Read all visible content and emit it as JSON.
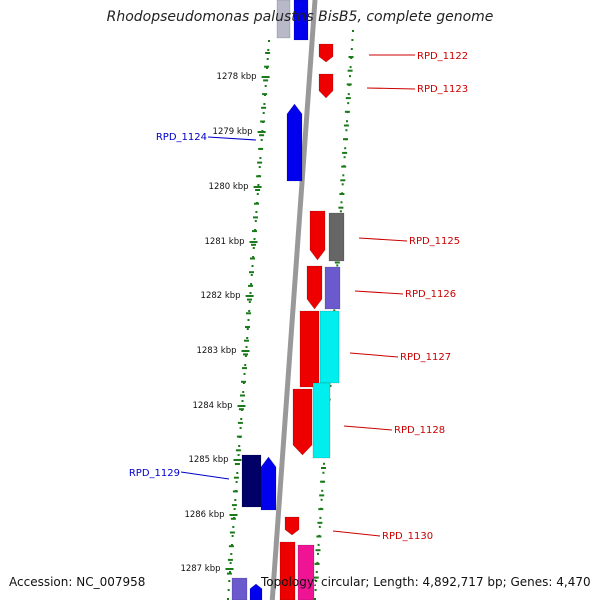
{
  "title": "Rhodopseudomonas palustris BisB5, complete genome",
  "footer": {
    "accession": "Accession: NC_007958",
    "summary": "Topology: circular; Length: 4,892,717 bp; Genes: 4,470"
  },
  "colors": {
    "forward_strand": "#ee0000",
    "reverse_strand": "#0000ee",
    "dark_blue": "#000066",
    "grey_gene": "#666666",
    "slate_gene": "#6a5acd",
    "cyan_gene": "#00eeee",
    "magenta_gene": "#ee1493",
    "tick": "#1a7a1a"
  },
  "kbp_labels": [
    "1278 kbp",
    "1279 kbp",
    "1280 kbp",
    "1281 kbp",
    "1282 kbp",
    "1283 kbp",
    "1284 kbp",
    "1285 kbp",
    "1286 kbp",
    "1287 kbp"
  ],
  "gene_labels": [
    {
      "text": "RPD_1122",
      "color": "#cc0000"
    },
    {
      "text": "RPD_1123",
      "color": "#cc0000"
    },
    {
      "text": "RPD_1124",
      "color": "#0000cc"
    },
    {
      "text": "RPD_1125",
      "color": "#cc0000"
    },
    {
      "text": "RPD_1126",
      "color": "#cc0000"
    },
    {
      "text": "RPD_1127",
      "color": "#cc0000"
    },
    {
      "text": "RPD_1128",
      "color": "#cc0000"
    },
    {
      "text": "RPD_1129",
      "color": "#0000cc"
    },
    {
      "text": "RPD_1130",
      "color": "#cc0000"
    }
  ]
}
